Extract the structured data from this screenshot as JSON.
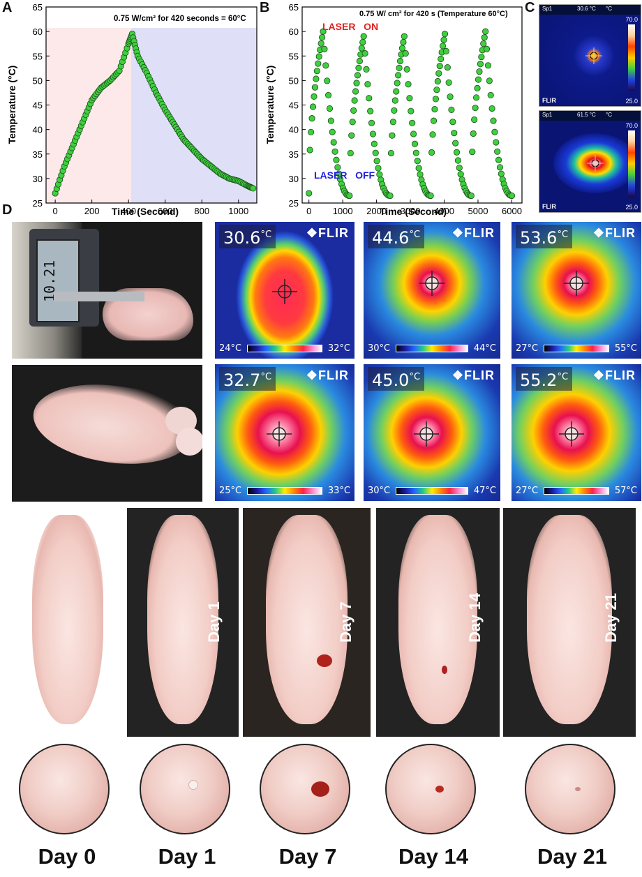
{
  "panels": {
    "A": "A",
    "B": "B",
    "C": "C",
    "D": "D"
  },
  "chartA": {
    "annotation": "0.75 W/cm² for 420 seconds = 60°C",
    "xlabel": "Time (Second)",
    "ylabel": "Temperature (°C)",
    "yticks": [
      "25",
      "30",
      "35",
      "40",
      "45",
      "50",
      "55",
      "60",
      "65"
    ],
    "xticks": [
      "0",
      "200",
      "400",
      "600",
      "800",
      "1000"
    ]
  },
  "chartB": {
    "annotation": "0.75 W/ cm² for 420 s (Temperature 60°C)",
    "laser_on": "LASER   ON",
    "laser_off": "LASER   OFF",
    "xlabel": "Time (Second)",
    "ylabel": "Temperature (°C)",
    "yticks": [
      "25",
      "30",
      "35",
      "40",
      "45",
      "50",
      "55",
      "60",
      "65"
    ],
    "xticks": [
      "0",
      "1000",
      "2000",
      "3000",
      "4000",
      "5000",
      "6000"
    ]
  },
  "chart_data": [
    {
      "type": "scatter",
      "xlabel": "Time (Second)",
      "ylabel": "Temperature (°C)",
      "xlim": [
        -50,
        1100
      ],
      "ylim": [
        25,
        65
      ],
      "series": [
        {
          "x": [
            0,
            50,
            100,
            150,
            200,
            250,
            300,
            350,
            400,
            420,
            450,
            500,
            550,
            600,
            650,
            700,
            750,
            800,
            850,
            900,
            950,
            1000,
            1050,
            1080
          ],
          "values": [
            27,
            32.5,
            37,
            41.5,
            46,
            48.5,
            50,
            52,
            57.5,
            59.5,
            55,
            51.5,
            47.5,
            44,
            41,
            38,
            36,
            34,
            32.5,
            31,
            30,
            29.5,
            28.5,
            28
          ]
        }
      ]
    },
    {
      "type": "scatter",
      "xlabel": "Time (Second)",
      "ylabel": "Temperature (°C)",
      "xlim": [
        -200,
        6300
      ],
      "ylim": [
        25,
        65
      ],
      "series": [
        {
          "x": [
            0,
            420,
            1200,
            1620,
            2400,
            2820,
            3600,
            4020,
            4800,
            5220,
            6000
          ],
          "values": [
            27,
            60,
            26.5,
            59,
            26.5,
            59,
            26.5,
            59.5,
            26.5,
            60,
            26.5
          ]
        }
      ]
    }
  ],
  "panelC": {
    "top": {
      "sp": "Sp1",
      "reading": "30.6 °C",
      "unit": "°C",
      "max": "70.0",
      "min": "25.0",
      "brand": "FLIR"
    },
    "bottom": {
      "sp": "Sp1",
      "reading": "61.5 °C",
      "unit": "°C",
      "max": "70.0",
      "min": "25.0",
      "brand": "FLIR"
    }
  },
  "thermals": [
    {
      "temp": "30.6",
      "unit": "°C",
      "lo": "24°C",
      "hi": "32°C",
      "brand": "FLIR"
    },
    {
      "temp": "44.6",
      "unit": "°C",
      "lo": "30°C",
      "hi": "44°C",
      "brand": "FLIR"
    },
    {
      "temp": "53.6",
      "unit": "°C",
      "lo": "27°C",
      "hi": "55°C",
      "brand": "FLIR"
    },
    {
      "temp": "32.7",
      "unit": "°C",
      "lo": "25°C",
      "hi": "33°C",
      "brand": "FLIR"
    },
    {
      "temp": "45.0",
      "unit": "°C",
      "lo": "30°C",
      "hi": "47°C",
      "brand": "FLIR"
    },
    {
      "temp": "55.2",
      "unit": "°C",
      "lo": "27°C",
      "hi": "57°C",
      "brand": "FLIR"
    }
  ],
  "caliper_reading": "10.21",
  "day_photos": [
    "",
    "Day 1",
    "Day 7",
    "Day 14",
    "Day 21"
  ],
  "bottom_labels": [
    "Day 0",
    "Day 1",
    "Day 7",
    "Day 14",
    "Day 21"
  ]
}
